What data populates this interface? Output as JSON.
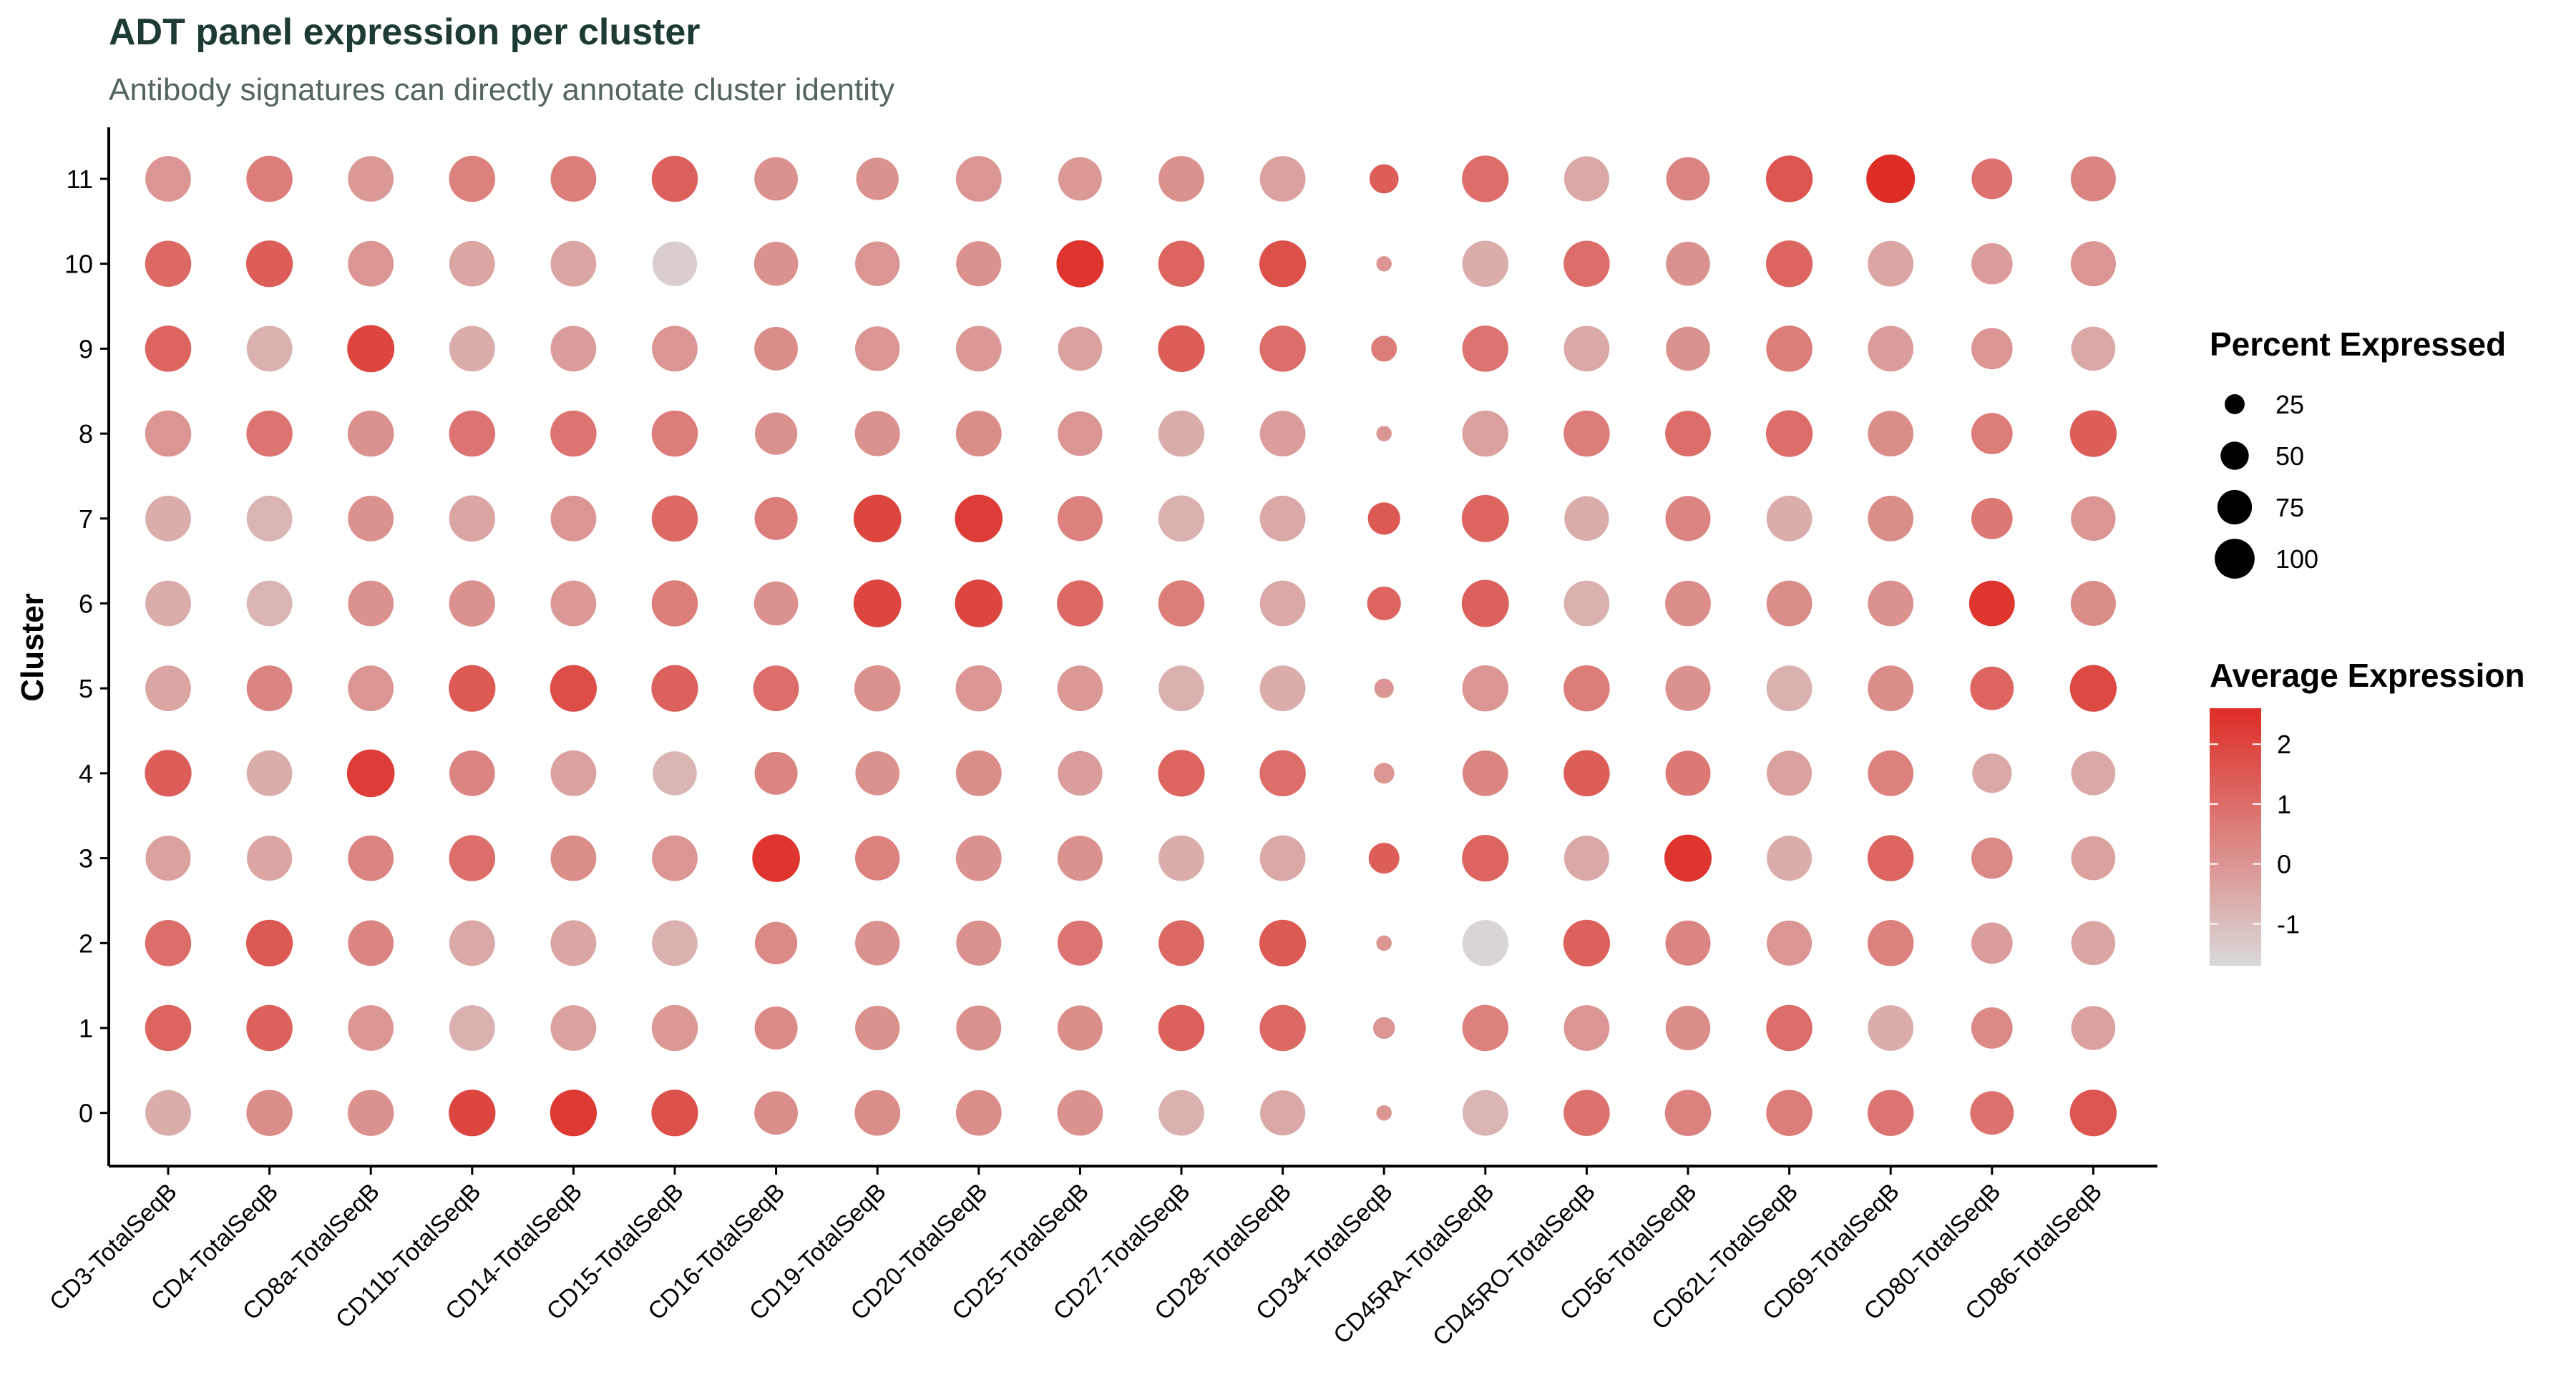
{
  "chart_data": {
    "type": "dot",
    "title": "ADT panel expression per cluster",
    "subtitle": "Antibody signatures can directly annotate cluster identity",
    "xlabel": "",
    "ylabel": "Cluster",
    "features": [
      "CD3-TotalSeqB",
      "CD4-TotalSeqB",
      "CD8a-TotalSeqB",
      "CD11b-TotalSeqB",
      "CD14-TotalSeqB",
      "CD15-TotalSeqB",
      "CD16-TotalSeqB",
      "CD19-TotalSeqB",
      "CD20-TotalSeqB",
      "CD25-TotalSeqB",
      "CD27-TotalSeqB",
      "CD28-TotalSeqB",
      "CD34-TotalSeqB",
      "CD45RA-TotalSeqB",
      "CD45RO-TotalSeqB",
      "CD56-TotalSeqB",
      "CD62L-TotalSeqB",
      "CD69-TotalSeqB",
      "CD80-TotalSeqB",
      "CD86-TotalSeqB"
    ],
    "clusters": [
      "0",
      "1",
      "2",
      "3",
      "4",
      "5",
      "6",
      "7",
      "8",
      "9",
      "10",
      "11"
    ],
    "avg_expression": [
      [
        -0.6,
        0.2,
        0.1,
        2.0,
        2.3,
        1.7,
        0.2,
        0.2,
        0.2,
        0.1,
        -0.7,
        -0.5,
        0.0,
        -0.8,
        0.9,
        0.5,
        0.6,
        0.8,
        0.9,
        1.6
      ],
      [
        1.2,
        1.3,
        0.0,
        -0.7,
        -0.3,
        -0.1,
        0.3,
        0.1,
        0.1,
        0.2,
        1.3,
        1.1,
        0.0,
        0.5,
        0.0,
        0.2,
        1.0,
        -0.6,
        0.3,
        -0.3
      ],
      [
        1.0,
        1.5,
        0.4,
        -0.5,
        -0.4,
        -0.7,
        0.3,
        0.1,
        0.1,
        0.8,
        1.1,
        1.5,
        0.0,
        -1.6,
        1.3,
        0.4,
        0.0,
        0.5,
        -0.2,
        -0.4
      ],
      [
        -0.3,
        -0.4,
        0.4,
        1.0,
        0.2,
        0.0,
        2.4,
        0.5,
        0.1,
        0.1,
        -0.6,
        -0.5,
        1.4,
        1.2,
        -0.5,
        2.4,
        -0.6,
        1.2,
        0.3,
        -0.3
      ],
      [
        1.4,
        -0.6,
        2.2,
        0.4,
        -0.3,
        -0.8,
        0.4,
        0.1,
        0.2,
        -0.2,
        1.2,
        1.0,
        0.0,
        0.4,
        1.4,
        0.7,
        -0.3,
        0.5,
        -0.5,
        -0.5
      ],
      [
        -0.4,
        0.4,
        0.0,
        1.5,
        1.8,
        1.3,
        1.0,
        0.1,
        0.0,
        -0.1,
        -0.7,
        -0.6,
        0.0,
        0.0,
        0.6,
        0.1,
        -0.7,
        0.2,
        1.2,
        1.9
      ],
      [
        -0.6,
        -0.8,
        0.1,
        0.1,
        -0.1,
        0.6,
        0.1,
        2.0,
        2.0,
        1.1,
        0.6,
        -0.5,
        1.2,
        1.3,
        -0.7,
        0.2,
        0.2,
        0.1,
        2.4,
        0.2
      ],
      [
        -0.6,
        -0.8,
        0.1,
        -0.4,
        0.0,
        1.1,
        0.6,
        2.0,
        2.2,
        0.5,
        -0.7,
        -0.5,
        1.5,
        1.2,
        -0.6,
        0.4,
        -0.6,
        0.2,
        0.7,
        0.0
      ],
      [
        0.0,
        0.8,
        0.1,
        0.8,
        0.8,
        0.6,
        0.1,
        0.1,
        0.2,
        0.0,
        -0.6,
        -0.2,
        0.0,
        -0.3,
        0.6,
        1.0,
        1.0,
        0.2,
        0.6,
        1.4
      ],
      [
        1.2,
        -0.7,
        2.0,
        -0.6,
        -0.2,
        0.0,
        0.2,
        0.0,
        -0.1,
        -0.3,
        1.4,
        1.0,
        0.6,
        0.8,
        -0.5,
        0.1,
        0.6,
        -0.2,
        0.0,
        -0.5
      ],
      [
        1.1,
        1.4,
        0.0,
        -0.4,
        -0.4,
        -1.4,
        0.1,
        0.0,
        0.1,
        2.4,
        1.2,
        1.7,
        0.0,
        -0.6,
        1.0,
        0.1,
        1.2,
        -0.4,
        -0.2,
        0.0
      ],
      [
        0.0,
        0.6,
        -0.1,
        0.5,
        0.6,
        1.3,
        0.1,
        0.1,
        0.0,
        -0.1,
        0.1,
        -0.3,
        1.4,
        1.0,
        -0.5,
        0.4,
        1.6,
        2.6,
        0.9,
        0.4
      ]
    ],
    "pct_expressed": [
      [
        88,
        90,
        90,
        92,
        92,
        92,
        80,
        88,
        88,
        88,
        88,
        86,
        10,
        88,
        90,
        90,
        90,
        90,
        80,
        92
      ],
      [
        90,
        90,
        88,
        88,
        88,
        90,
        78,
        84,
        86,
        86,
        90,
        90,
        20,
        90,
        88,
        84,
        90,
        88,
        72,
        82
      ],
      [
        90,
        92,
        88,
        88,
        88,
        88,
        76,
        84,
        86,
        86,
        88,
        92,
        10,
        90,
        92,
        86,
        86,
        90,
        72,
        82
      ],
      [
        86,
        86,
        88,
        90,
        88,
        88,
        96,
        84,
        88,
        86,
        88,
        88,
        40,
        92,
        86,
        94,
        86,
        90,
        72,
        82
      ],
      [
        92,
        88,
        96,
        88,
        88,
        82,
        78,
        82,
        88,
        84,
        92,
        90,
        18,
        88,
        90,
        86,
        86,
        88,
        66,
        82
      ],
      [
        88,
        88,
        88,
        92,
        92,
        92,
        88,
        90,
        90,
        88,
        88,
        88,
        16,
        90,
        90,
        86,
        88,
        88,
        80,
        92
      ],
      [
        88,
        88,
        88,
        90,
        88,
        90,
        82,
        96,
        96,
        90,
        90,
        88,
        48,
        94,
        88,
        88,
        88,
        88,
        88,
        86
      ],
      [
        88,
        88,
        88,
        90,
        88,
        90,
        78,
        96,
        96,
        86,
        90,
        88,
        44,
        94,
        84,
        86,
        88,
        88,
        72,
        84
      ],
      [
        90,
        90,
        90,
        90,
        90,
        90,
        76,
        86,
        88,
        84,
        90,
        88,
        10,
        90,
        90,
        88,
        92,
        88,
        72,
        92
      ],
      [
        90,
        88,
        94,
        88,
        88,
        88,
        80,
        84,
        88,
        82,
        92,
        90,
        28,
        90,
        88,
        82,
        90,
        88,
        72,
        82
      ],
      [
        90,
        92,
        88,
        88,
        88,
        84,
        82,
        84,
        86,
        94,
        90,
        92,
        10,
        90,
        90,
        82,
        92,
        88,
        72,
        86
      ],
      [
        88,
        90,
        88,
        90,
        88,
        90,
        80,
        76,
        88,
        80,
        88,
        88,
        36,
        92,
        86,
        80,
        92,
        100,
        70,
        86
      ]
    ],
    "size_legend": {
      "title": "Percent Expressed",
      "values": [
        25,
        50,
        75,
        100
      ],
      "labels": [
        "25",
        "50",
        "75",
        "100"
      ]
    },
    "color_legend": {
      "title": "Average Expression",
      "min": -1.7,
      "max": 2.6,
      "ticks": [
        2,
        1,
        0,
        -1
      ],
      "tick_labels": [
        "2",
        "1",
        "0",
        "-1"
      ],
      "low_color": "#d9d9d9",
      "high_color": "#de2d26"
    },
    "grid": false
  }
}
